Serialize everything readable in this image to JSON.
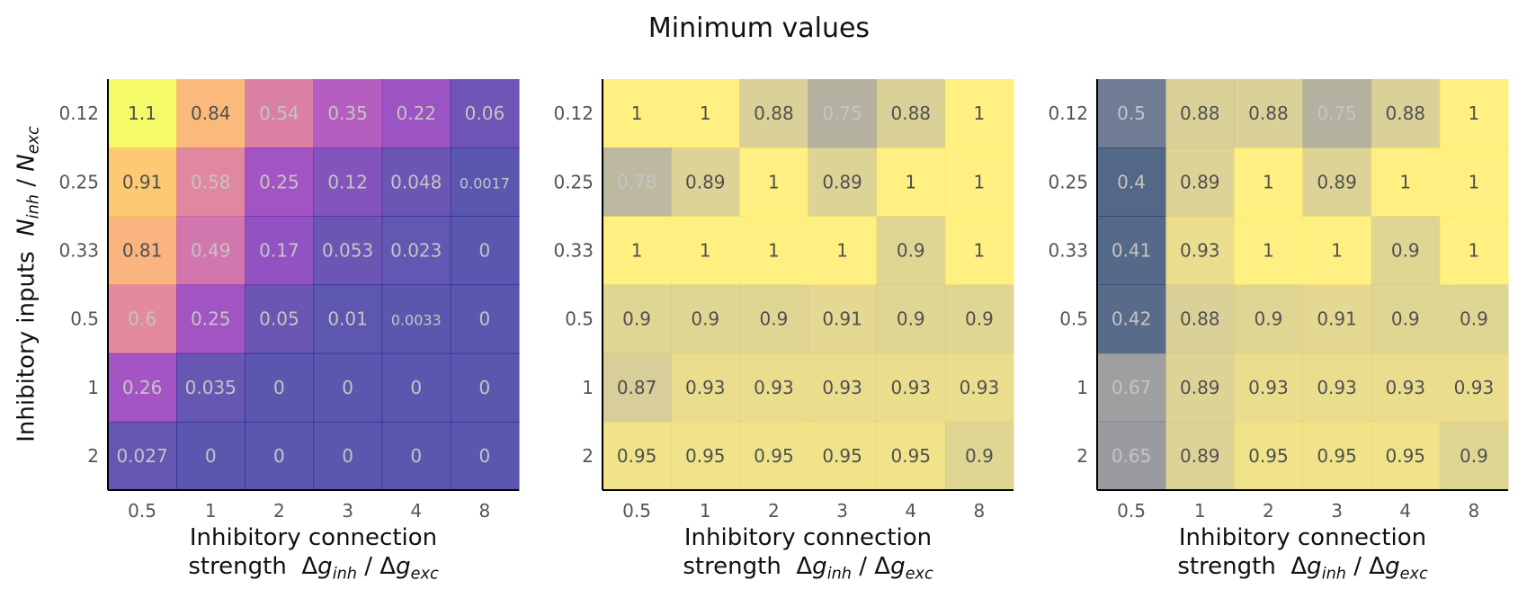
{
  "suptitle": "Minimum values",
  "ylabel": {
    "text": "Inhibitory inputs",
    "math": {
      "num_var": "N",
      "num_sub": "inh",
      "sep": " / ",
      "den_var": "N",
      "den_sub": "exc"
    }
  },
  "xlabel": {
    "line1": "Inhibitory connection",
    "line2": "strength",
    "delta": "Δ",
    "var": "g",
    "num_sub": "inh",
    "sep": " / ",
    "den_sub": "exc"
  },
  "chart_data": [
    {
      "type": "heatmap",
      "colormap": "plasma",
      "vmin": 0,
      "vmax": 1.1,
      "x_ticks": [
        "0.5",
        "1",
        "2",
        "3",
        "4",
        "8"
      ],
      "y_ticks": [
        "0.12",
        "0.25",
        "0.33",
        "0.5",
        "1",
        "2"
      ],
      "values": [
        [
          "1.1",
          "0.84",
          "0.54",
          "0.35",
          "0.22",
          "0.06"
        ],
        [
          "0.91",
          "0.58",
          "0.25",
          "0.12",
          "0.048",
          "0.0017"
        ],
        [
          "0.81",
          "0.49",
          "0.17",
          "0.053",
          "0.023",
          "0"
        ],
        [
          "0.6",
          "0.25",
          "0.05",
          "0.01",
          "0.0033",
          "0"
        ],
        [
          "0.26",
          "0.035",
          "0",
          "0",
          "0",
          "0"
        ],
        [
          "0.027",
          "0",
          "0",
          "0",
          "0",
          "0"
        ]
      ]
    },
    {
      "type": "heatmap",
      "colormap": "cividis",
      "vmin": 0.4,
      "vmax": 1,
      "x_ticks": [
        "0.5",
        "1",
        "2",
        "3",
        "4",
        "8"
      ],
      "y_ticks": [
        "0.12",
        "0.25",
        "0.33",
        "0.5",
        "1",
        "2"
      ],
      "values": [
        [
          "1",
          "1",
          "0.88",
          "0.75",
          "0.88",
          "1"
        ],
        [
          "0.78",
          "0.89",
          "1",
          "0.89",
          "1",
          "1"
        ],
        [
          "1",
          "1",
          "1",
          "1",
          "0.9",
          "1"
        ],
        [
          "0.9",
          "0.9",
          "0.9",
          "0.91",
          "0.9",
          "0.9"
        ],
        [
          "0.87",
          "0.93",
          "0.93",
          "0.93",
          "0.93",
          "0.93"
        ],
        [
          "0.95",
          "0.95",
          "0.95",
          "0.95",
          "0.95",
          "0.9"
        ]
      ]
    },
    {
      "type": "heatmap",
      "colormap": "cividis",
      "vmin": 0.4,
      "vmax": 1,
      "x_ticks": [
        "0.5",
        "1",
        "2",
        "3",
        "4",
        "8"
      ],
      "y_ticks": [
        "0.12",
        "0.25",
        "0.33",
        "0.5",
        "1",
        "2"
      ],
      "values": [
        [
          "0.5",
          "0.88",
          "0.88",
          "0.75",
          "0.88",
          "1"
        ],
        [
          "0.4",
          "0.89",
          "1",
          "0.89",
          "1",
          "1"
        ],
        [
          "0.41",
          "0.93",
          "1",
          "1",
          "0.9",
          "1"
        ],
        [
          "0.42",
          "0.88",
          "0.9",
          "0.91",
          "0.9",
          "0.9"
        ],
        [
          "0.67",
          "0.89",
          "0.93",
          "0.93",
          "0.93",
          "0.93"
        ],
        [
          "0.65",
          "0.89",
          "0.95",
          "0.95",
          "0.95",
          "0.9"
        ]
      ]
    }
  ]
}
